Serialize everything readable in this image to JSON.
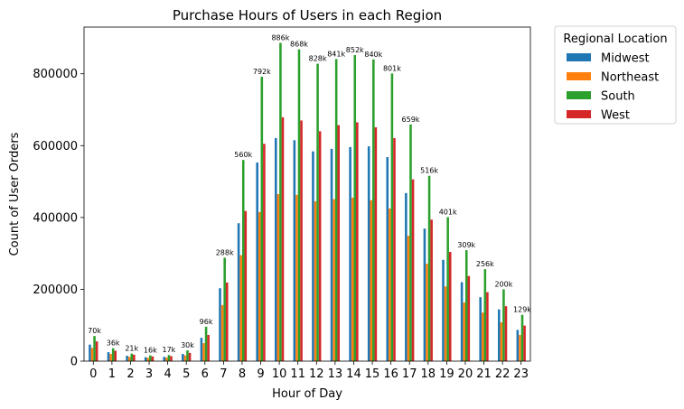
{
  "chart_data": {
    "type": "bar",
    "title": "Purchase Hours of Users in each Region",
    "xlabel": "Hour of Day",
    "ylabel": "Count of User Orders",
    "ylim": [
      0,
      930000
    ],
    "yticks": [
      0,
      200000,
      400000,
      600000,
      800000
    ],
    "ytick_labels": [
      "0",
      "200000",
      "400000",
      "600000",
      "800000"
    ],
    "grid": false,
    "legend": {
      "title": "Regional Location",
      "placement": "outside-top-right"
    },
    "categories": [
      "0",
      "1",
      "2",
      "3",
      "4",
      "5",
      "6",
      "7",
      "8",
      "9",
      "10",
      "11",
      "12",
      "13",
      "14",
      "15",
      "16",
      "17",
      "18",
      "19",
      "20",
      "21",
      "22",
      "23"
    ],
    "series": [
      {
        "name": "Midwest",
        "color": "#1f77b4",
        "values": [
          46000,
          25000,
          15000,
          11000,
          12000,
          20000,
          65000,
          203000,
          384000,
          553000,
          621000,
          615000,
          584000,
          591000,
          596000,
          598000,
          568000,
          468000,
          369000,
          282000,
          220000,
          178000,
          144000,
          87000
        ]
      },
      {
        "name": "Northeast",
        "color": "#ff7f0e",
        "values": [
          37000,
          20000,
          12000,
          9000,
          10000,
          16000,
          50000,
          156000,
          295000,
          415000,
          465000,
          463000,
          445000,
          451000,
          455000,
          448000,
          425000,
          349000,
          271000,
          208000,
          163000,
          135000,
          108000,
          73000
        ]
      },
      {
        "name": "South",
        "color": "#2ca02c",
        "values": [
          70000,
          36000,
          21000,
          16000,
          17000,
          30000,
          96000,
          288000,
          560000,
          792000,
          886000,
          868000,
          828000,
          841000,
          852000,
          840000,
          801000,
          659000,
          516000,
          401000,
          309000,
          256000,
          200000,
          129000
        ]
      },
      {
        "name": "West",
        "color": "#d62728",
        "values": [
          55000,
          29000,
          18000,
          13000,
          14000,
          23000,
          73000,
          219000,
          418000,
          605000,
          679000,
          670000,
          640000,
          657000,
          665000,
          651000,
          621000,
          506000,
          394000,
          304000,
          237000,
          192000,
          153000,
          99000
        ]
      }
    ],
    "annotations": [
      "70k",
      "36k",
      "21k",
      "16k",
      "17k",
      "30k",
      "96k",
      "288k",
      "560k",
      "792k",
      "886k",
      "868k",
      "828k",
      "841k",
      "852k",
      "840k",
      "801k",
      "659k",
      "516k",
      "401k",
      "309k",
      "256k",
      "200k",
      "129k"
    ]
  }
}
